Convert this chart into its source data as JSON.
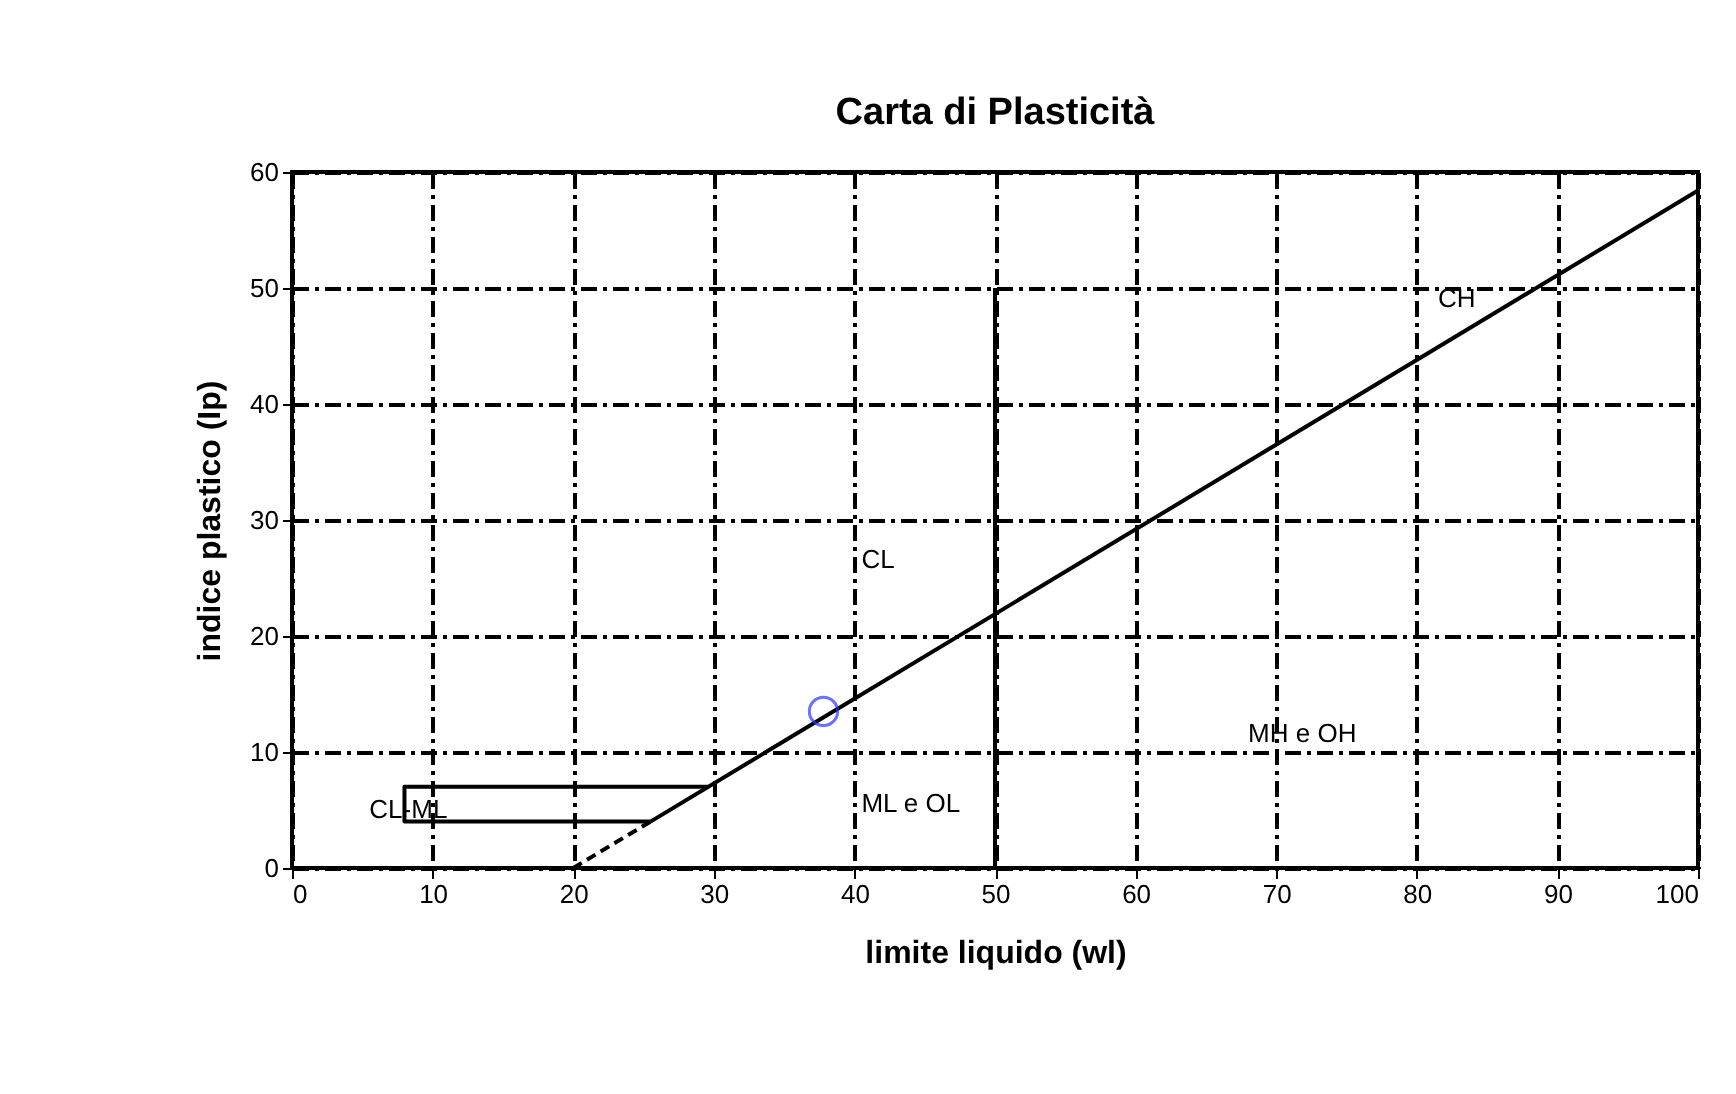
{
  "chart_data": {
    "type": "line",
    "title": "Carta di Plasticità",
    "xlabel": "limite liquido (wl)",
    "ylabel": "indice plastico (Ip)",
    "xlim": [
      0,
      100
    ],
    "xticks": [
      0,
      10,
      20,
      30,
      40,
      50,
      60,
      70,
      80,
      90,
      100
    ],
    "ylim": [
      0,
      60
    ],
    "yticks": [
      0,
      10,
      20,
      30,
      40,
      50,
      60
    ],
    "grid": true,
    "series": [
      {
        "color": "#000000",
        "line_style": "solid",
        "x": [
          25.5,
          100
        ],
        "values": [
          4,
          58.4
        ]
      },
      {
        "color": "#000000",
        "line_style": "dashed",
        "x": [
          20,
          25.5
        ],
        "values": [
          0,
          4
        ]
      },
      {
        "color": "#000000",
        "line_style": "solid",
        "x": [
          29.6,
          8,
          8,
          25.5
        ],
        "values": [
          7,
          7,
          4,
          4
        ]
      },
      {
        "color": "#000000",
        "line_style": "solid",
        "x": [
          50,
          50
        ],
        "values": [
          0,
          50
        ]
      },
      {
        "type": "scatter",
        "color": "#3333ff",
        "marker": "circle",
        "x": [
          37.8
        ],
        "values": [
          13.5
        ]
      }
    ],
    "annotations": [
      "CH",
      "CL",
      "ML e OL",
      "MH e OH",
      "CL-ML"
    ]
  }
}
